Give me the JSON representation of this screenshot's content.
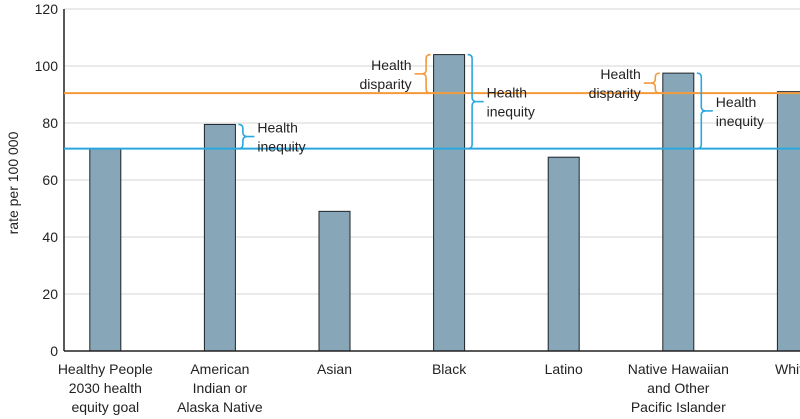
{
  "chart_data": {
    "type": "bar",
    "title": "",
    "xlabel": "",
    "ylabel": "rate per 100 000",
    "ylim": [
      0,
      120
    ],
    "yticks": [
      0,
      20,
      40,
      60,
      80,
      100,
      120
    ],
    "grid": true,
    "categories": [
      [
        "Healthy People",
        "2030 health",
        "equity goal"
      ],
      [
        "American",
        "Indian or",
        "Alaska Native"
      ],
      [
        "Asian"
      ],
      [
        "Black"
      ],
      [
        "Latino"
      ],
      [
        "Native Hawaiian",
        "and Other",
        "Pacific Islander"
      ],
      [
        "White"
      ]
    ],
    "values": [
      71,
      79.5,
      49,
      104,
      68,
      97.5,
      91
    ],
    "reference_lines": [
      {
        "name": "equity-goal-line",
        "value": 71,
        "color": "#2aa7de"
      },
      {
        "name": "white-reference-line",
        "value": 90.5,
        "color": "#f39a3a"
      }
    ],
    "annotations": [
      {
        "name": "inequity-american-indian",
        "label": [
          "Health",
          "inequity"
        ],
        "category_index": 1,
        "from": 71,
        "to": 79.5,
        "color": "#2aa7de",
        "side": "right"
      },
      {
        "name": "disparity-black",
        "label": [
          "Health",
          "disparity"
        ],
        "category_index": 3,
        "from": 90.5,
        "to": 104,
        "color": "#f39a3a",
        "side": "left"
      },
      {
        "name": "inequity-black",
        "label": [
          "Health",
          "inequity"
        ],
        "category_index": 3,
        "from": 71,
        "to": 104,
        "color": "#2aa7de",
        "side": "right"
      },
      {
        "name": "disparity-native-hawaiian",
        "label": [
          "Health",
          "disparity"
        ],
        "category_index": 5,
        "from": 90.5,
        "to": 97.5,
        "color": "#f39a3a",
        "side": "left"
      },
      {
        "name": "inequity-native-hawaiian",
        "label": [
          "Health",
          "inequity"
        ],
        "category_index": 5,
        "from": 71,
        "to": 97.5,
        "color": "#2aa7de",
        "side": "right"
      }
    ],
    "colors": {
      "bar_fill": "#87a7b8",
      "bar_stroke": "#1e2328",
      "grid": "#d6d6d6",
      "axis": "#222222"
    }
  }
}
